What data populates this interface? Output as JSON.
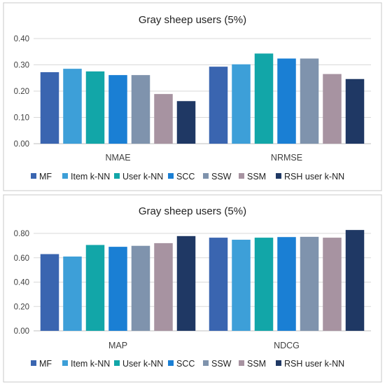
{
  "colors": {
    "panel_border": "#c8c8c8",
    "gridline": "#d9d9d9",
    "axis": "#bfbfbf",
    "series": [
      "#3a65b0",
      "#3d9fd8",
      "#12a6a8",
      "#1a7fd4",
      "#7f93ad",
      "#a793a1",
      "#1f3864"
    ]
  },
  "chart_data": [
    {
      "type": "bar",
      "title": "Gray sheep users (5%)",
      "categories": [
        "NMAE",
        "NRMSE"
      ],
      "ylim": [
        0,
        0.4
      ],
      "yticks": [
        "0.00",
        "0.10",
        "0.20",
        "0.30",
        "0.40"
      ],
      "grid": true,
      "legend_position": "bottom",
      "series": [
        {
          "name": "MF",
          "values": [
            0.272,
            0.293
          ]
        },
        {
          "name": "Item k-NN",
          "values": [
            0.285,
            0.302
          ]
        },
        {
          "name": "User k-NN",
          "values": [
            0.275,
            0.343
          ]
        },
        {
          "name": "SCC",
          "values": [
            0.261,
            0.324
          ]
        },
        {
          "name": "SSW",
          "values": [
            0.261,
            0.324
          ]
        },
        {
          "name": "SSM",
          "values": [
            0.189,
            0.265
          ]
        },
        {
          "name": "RSH user k-NN",
          "values": [
            0.162,
            0.246
          ]
        }
      ]
    },
    {
      "type": "bar",
      "title": "Gray sheep users (5%)",
      "categories": [
        "MAP",
        "NDCG"
      ],
      "ylim": [
        0,
        0.8
      ],
      "yticks": [
        "0.00",
        "0.20",
        "0.40",
        "0.60",
        "0.80"
      ],
      "grid": true,
      "legend_position": "bottom",
      "series": [
        {
          "name": "MF",
          "values": [
            0.63,
            0.765
          ]
        },
        {
          "name": "Item k-NN",
          "values": [
            0.61,
            0.748
          ]
        },
        {
          "name": "User k-NN",
          "values": [
            0.705,
            0.765
          ]
        },
        {
          "name": "SCC",
          "values": [
            0.69,
            0.77
          ]
        },
        {
          "name": "SSW",
          "values": [
            0.698,
            0.772
          ]
        },
        {
          "name": "SSM",
          "values": [
            0.72,
            0.765
          ]
        },
        {
          "name": "RSH user k-NN",
          "values": [
            0.778,
            0.828
          ]
        }
      ]
    }
  ]
}
